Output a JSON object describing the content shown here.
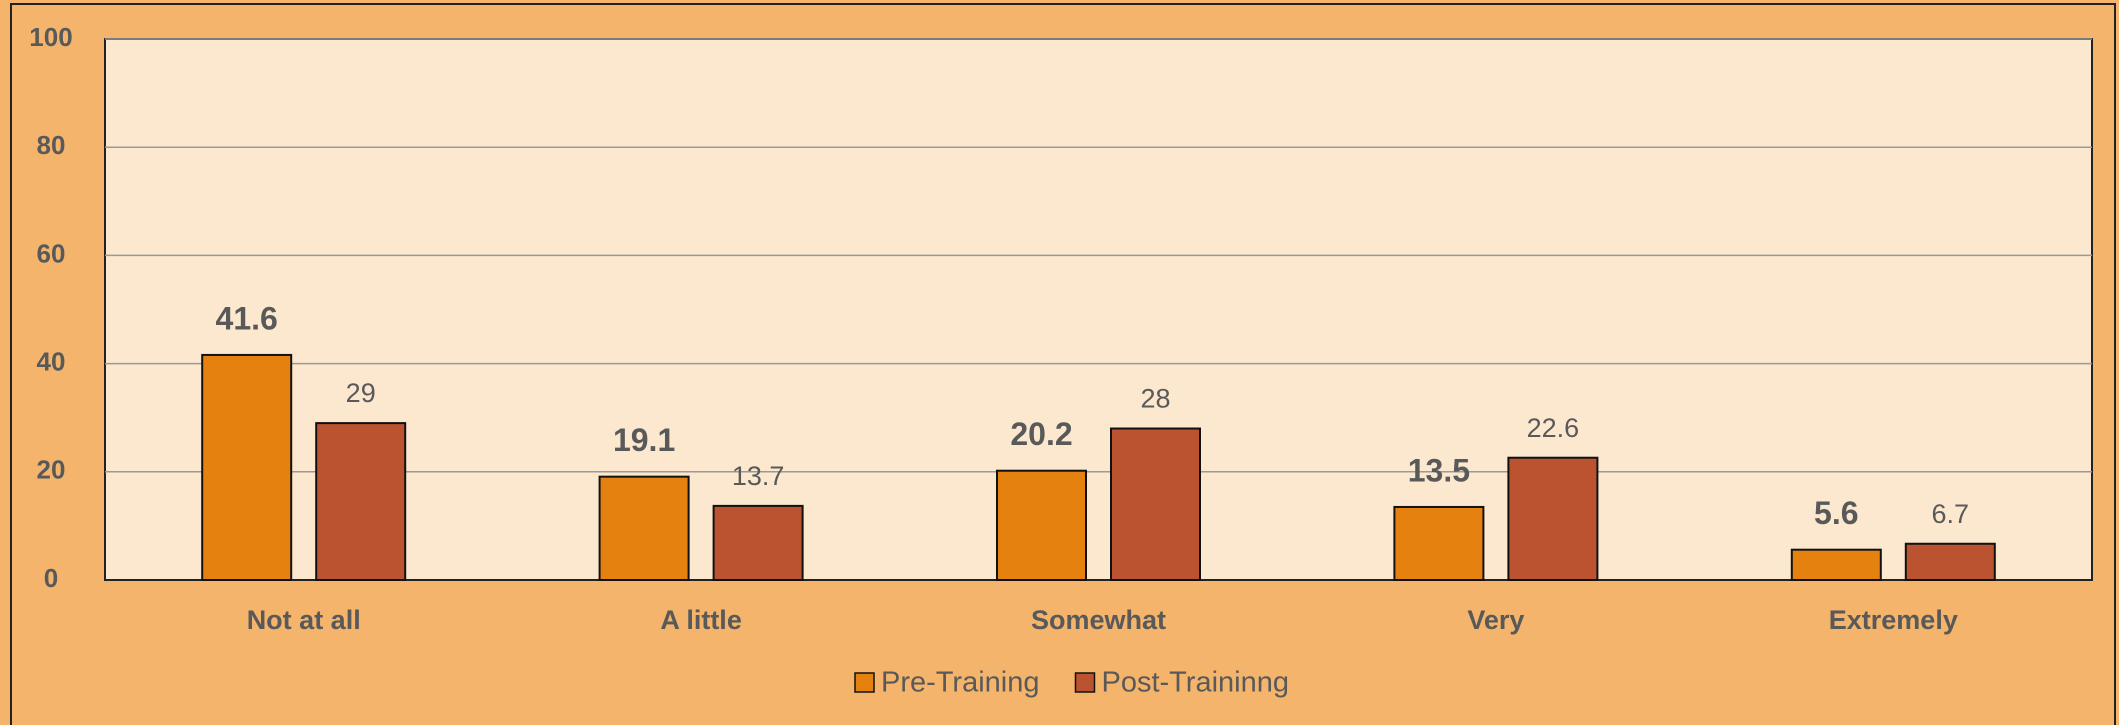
{
  "chart_data": {
    "type": "bar",
    "categories": [
      "Not at all",
      "A little",
      "Somewhat",
      "Very",
      "Extremely"
    ],
    "series": [
      {
        "name": "Pre-Training",
        "color": "#e5820f",
        "values": [
          41.6,
          19.1,
          20.2,
          13.5,
          5.6
        ]
      },
      {
        "name": "Post-Traininng",
        "color": "#bb5330",
        "values": [
          29,
          13.7,
          28,
          22.6,
          6.7
        ]
      }
    ],
    "ylim": [
      0,
      100
    ],
    "yticks": [
      0,
      20,
      40,
      60,
      80,
      100
    ],
    "grid": true,
    "legend": "bottom"
  }
}
